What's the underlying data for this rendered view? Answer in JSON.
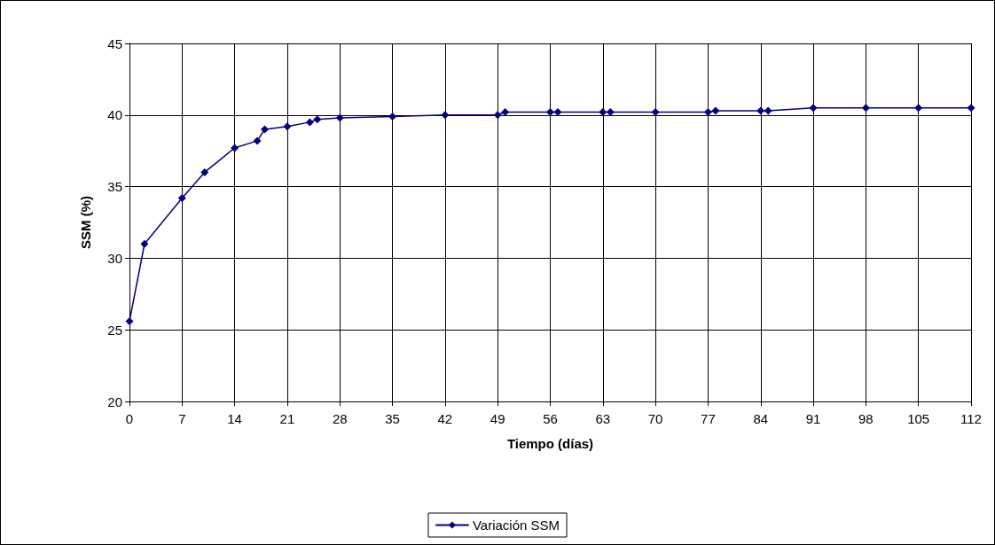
{
  "chart_data": {
    "type": "line",
    "xlabel": "Tiempo (días)",
    "ylabel": "SSM (%)",
    "x": [
      0,
      2,
      7,
      10,
      14,
      17,
      18,
      21,
      24,
      25,
      28,
      35,
      42,
      49,
      50,
      56,
      57,
      63,
      64,
      70,
      77,
      78,
      84,
      85,
      91,
      98,
      105,
      112
    ],
    "series": [
      {
        "name": "Variación SSM",
        "color": "#000080",
        "values": [
          25.6,
          31.0,
          34.2,
          36.0,
          37.7,
          38.2,
          39.0,
          39.2,
          39.5,
          39.7,
          39.8,
          39.9,
          40.0,
          40.0,
          40.2,
          40.2,
          40.2,
          40.2,
          40.2,
          40.2,
          40.2,
          40.3,
          40.3,
          40.3,
          40.5,
          40.5,
          40.5,
          40.5
        ]
      }
    ],
    "xlim": [
      0,
      112
    ],
    "xticks": [
      0,
      7,
      14,
      21,
      28,
      35,
      42,
      49,
      56,
      63,
      70,
      77,
      84,
      91,
      98,
      105,
      112
    ],
    "ylim": [
      20,
      45
    ],
    "yticks": [
      20,
      25,
      30,
      35,
      40,
      45
    ],
    "grid": true,
    "legend": "bottom",
    "marker": "diamond",
    "line_style": "solid"
  }
}
